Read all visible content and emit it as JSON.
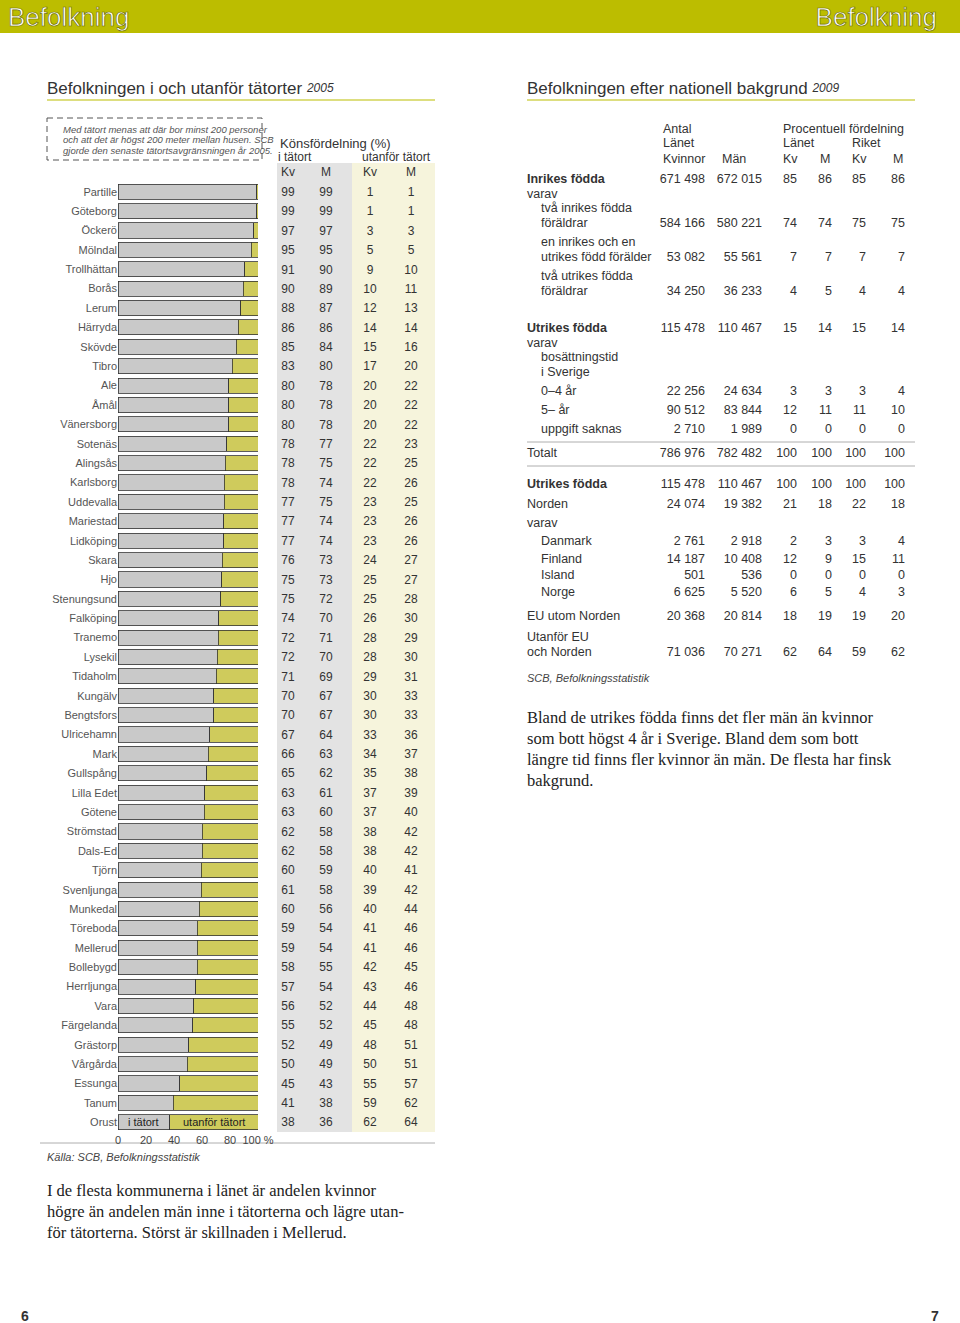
{
  "header": {
    "left": "Befolkning",
    "right": "Befolkning"
  },
  "left": {
    "title": "Befolkningen i och utanför tätorter",
    "year": "2005",
    "note": [
      "Med tätort menas att där bor minst 200 personer",
      "och att det är högst 200 meter mellan husen. SCB",
      "gjorde den senaste tätortsavgränsningen år 2005."
    ],
    "table": {
      "title": "Könsfördelning (%)",
      "groups": [
        "i tätort",
        "utanför tätort"
      ],
      "columns": [
        "Kv",
        "M",
        "Kv",
        "M"
      ],
      "rows": [
        [
          99,
          99,
          1,
          1
        ],
        [
          99,
          99,
          1,
          1
        ],
        [
          97,
          97,
          3,
          3
        ],
        [
          95,
          95,
          5,
          5
        ],
        [
          91,
          90,
          9,
          10
        ],
        [
          90,
          89,
          10,
          11
        ],
        [
          88,
          87,
          12,
          13
        ],
        [
          86,
          86,
          14,
          14
        ],
        [
          85,
          84,
          15,
          16
        ],
        [
          83,
          80,
          17,
          20
        ],
        [
          80,
          78,
          20,
          22
        ],
        [
          80,
          78,
          20,
          22
        ],
        [
          80,
          78,
          20,
          22
        ],
        [
          78,
          77,
          22,
          23
        ],
        [
          78,
          75,
          22,
          25
        ],
        [
          78,
          74,
          22,
          26
        ],
        [
          77,
          75,
          23,
          25
        ],
        [
          77,
          74,
          23,
          26
        ],
        [
          77,
          74,
          23,
          26
        ],
        [
          76,
          73,
          24,
          27
        ],
        [
          75,
          73,
          25,
          27
        ],
        [
          75,
          72,
          25,
          28
        ],
        [
          74,
          70,
          26,
          30
        ],
        [
          72,
          71,
          28,
          29
        ],
        [
          72,
          70,
          28,
          30
        ],
        [
          71,
          69,
          29,
          31
        ],
        [
          70,
          67,
          30,
          33
        ],
        [
          70,
          67,
          30,
          33
        ],
        [
          67,
          64,
          33,
          36
        ],
        [
          66,
          63,
          34,
          37
        ],
        [
          65,
          62,
          35,
          38
        ],
        [
          63,
          61,
          37,
          39
        ],
        [
          63,
          60,
          37,
          40
        ],
        [
          62,
          58,
          38,
          42
        ],
        [
          62,
          58,
          38,
          42
        ],
        [
          60,
          59,
          40,
          41
        ],
        [
          61,
          58,
          39,
          42
        ],
        [
          60,
          56,
          40,
          44
        ],
        [
          59,
          54,
          41,
          46
        ],
        [
          59,
          54,
          41,
          46
        ],
        [
          58,
          55,
          42,
          45
        ],
        [
          57,
          54,
          43,
          46
        ],
        [
          56,
          52,
          44,
          48
        ],
        [
          55,
          52,
          45,
          48
        ],
        [
          52,
          49,
          48,
          51
        ],
        [
          50,
          49,
          50,
          51
        ],
        [
          45,
          43,
          55,
          57
        ],
        [
          41,
          38,
          59,
          62
        ],
        [
          38,
          36,
          62,
          64
        ]
      ]
    },
    "source": "Källa: SCB, Befolkningsstatistik",
    "text": [
      "I de flesta kommunerna i länet är andelen kvinnor",
      "högre än andelen män inne i tätorterna och lägre utan-",
      "för tätorterna. Störst är skillnaden i Mellerud."
    ]
  },
  "chart_data": {
    "type": "bar",
    "orientation": "horizontal",
    "stacked": true,
    "grid": false,
    "categories": [
      "Partille",
      "Göteborg",
      "Öckerö",
      "Mölndal",
      "Trollhättan",
      "Borås",
      "Lerum",
      "Härryda",
      "Skövde",
      "Tibro",
      "Ale",
      "Åmål",
      "Vänersborg",
      "Sotenäs",
      "Alingsås",
      "Karlsborg",
      "Uddevalla",
      "Mariestad",
      "Lidköping",
      "Skara",
      "Hjo",
      "Stenungsund",
      "Falköping",
      "Tranemo",
      "Lysekil",
      "Tidaholm",
      "Kungälv",
      "Bengtsfors",
      "Ulricehamn",
      "Mark",
      "Gullspång",
      "Lilla Edet",
      "Götene",
      "Strömstad",
      "Dals-Ed",
      "Tjörn",
      "Svenljunga",
      "Munkedal",
      "Töreboda",
      "Mellerud",
      "Bollebygd",
      "Herrljunga",
      "Vara",
      "Färgelanda",
      "Grästorp",
      "Vårgårda",
      "Essunga",
      "Tanum",
      "Orust"
    ],
    "series": [
      {
        "name": "i tätort",
        "color": "#c9c9c9",
        "values": [
          99,
          99,
          97,
          95,
          90.5,
          89.5,
          87.5,
          86,
          84.5,
          81.5,
          79,
          79,
          79,
          77.5,
          76.5,
          76,
          76,
          75.5,
          75.5,
          74.5,
          74,
          73.5,
          72,
          71.5,
          71,
          70,
          68.5,
          68.5,
          65.5,
          64.5,
          63.5,
          62,
          61.5,
          60,
          60,
          59.5,
          59.5,
          58,
          56.5,
          56.5,
          56.5,
          55.5,
          54,
          53.5,
          50.5,
          49.5,
          44,
          39.5,
          37
        ]
      },
      {
        "name": "utanför tätort",
        "color": "#cfcb5c",
        "values": [
          1,
          1,
          3,
          5,
          9.5,
          10.5,
          12.5,
          14,
          15.5,
          18.5,
          21,
          21,
          21,
          22.5,
          23.5,
          24,
          24,
          24.5,
          24.5,
          25.5,
          26,
          26.5,
          28,
          28.5,
          29,
          30,
          31.5,
          31.5,
          34.5,
          35.5,
          36.5,
          38,
          38.5,
          40,
          40,
          40.5,
          40.5,
          42,
          43.5,
          43.5,
          43.5,
          44.5,
          46,
          46.5,
          49.5,
          50.5,
          56,
          60.5,
          63
        ]
      }
    ],
    "xlim": [
      0,
      100
    ],
    "xticks": [
      0,
      20,
      40,
      60,
      80,
      {
        "value": 100,
        "label": "100 %"
      }
    ]
  },
  "right": {
    "title": "Befolkningen efter nationell bakgrund",
    "year": "2009",
    "header": {
      "antal": [
        "Antal",
        "Länet"
      ],
      "procent": "Procentuell fördelning",
      "procent_groups": [
        "Länet",
        "Riket"
      ],
      "columns": [
        "Kvinnor",
        "Män",
        "Kv",
        "M",
        "Kv",
        "M"
      ]
    },
    "rows": [
      {
        "label": [
          "Inrikes födda"
        ],
        "values": [
          "671 498",
          "672 015",
          "85",
          "86",
          "85",
          "86"
        ]
      },
      {
        "label": [
          "varav"
        ]
      },
      {
        "label": [
          "två inrikes födda",
          "föräldrar"
        ],
        "values": [
          "584 166",
          "580 221",
          "74",
          "74",
          "75",
          "75"
        ]
      },
      {
        "label": [
          "en inrikes och en",
          "utrikes född förälder"
        ],
        "values": [
          "53 082",
          "55 561",
          "7",
          "7",
          "7",
          "7"
        ]
      },
      {
        "label": [
          "två utrikes födda",
          "föräldrar"
        ],
        "values": [
          "34 250",
          "36 233",
          "4",
          "5",
          "4",
          "4"
        ]
      },
      {
        "label": [
          "Utrikes födda"
        ],
        "values": [
          "115 478",
          "110 467",
          "15",
          "14",
          "15",
          "14"
        ]
      },
      {
        "label": [
          "varav"
        ]
      },
      {
        "label": [
          "bosättningstid",
          "i Sverige"
        ]
      },
      {
        "label": [
          "0–4 år"
        ],
        "values": [
          "22 256",
          "24 634",
          "3",
          "3",
          "3",
          "4"
        ]
      },
      {
        "label": [
          "5– år"
        ],
        "values": [
          "90 512",
          "83 844",
          "12",
          "11",
          "11",
          "10"
        ]
      },
      {
        "label": [
          "uppgift saknas"
        ],
        "values": [
          "2 710",
          "1 989",
          "0",
          "0",
          "0",
          "0"
        ]
      },
      {
        "label": [
          "Totalt"
        ],
        "values": [
          "786 976",
          "782 482",
          "100",
          "100",
          "100",
          "100"
        ]
      },
      {
        "label": [
          "Utrikes födda"
        ],
        "values": [
          "115 478",
          "110 467",
          "100",
          "100",
          "100",
          "100"
        ]
      },
      {
        "label": [
          "Norden"
        ],
        "values": [
          "24 074",
          "19 382",
          "21",
          "18",
          "22",
          "18"
        ]
      },
      {
        "label": [
          "varav"
        ]
      },
      {
        "label": [
          "Danmark"
        ],
        "values": [
          "2 761",
          "2 918",
          "2",
          "3",
          "3",
          "4"
        ]
      },
      {
        "label": [
          "Finland"
        ],
        "values": [
          "14 187",
          "10 408",
          "12",
          "9",
          "15",
          "11"
        ]
      },
      {
        "label": [
          "Island"
        ],
        "values": [
          "501",
          "536",
          "0",
          "0",
          "0",
          "0"
        ]
      },
      {
        "label": [
          "Norge"
        ],
        "values": [
          "6 625",
          "5 520",
          "6",
          "5",
          "4",
          "3"
        ]
      },
      {
        "label": [
          "EU utom Norden"
        ],
        "values": [
          "20 368",
          "20 814",
          "18",
          "19",
          "19",
          "20"
        ]
      },
      {
        "label": [
          "Utanför EU",
          "och Norden"
        ],
        "values": [
          "71 036",
          "70 271",
          "62",
          "64",
          "59",
          "62"
        ]
      }
    ],
    "source": "SCB, Befolkningsstatistik",
    "text": [
      "Bland de utrikes födda finns det fler män än kvinnor",
      "som bott högst 4 år i Sverige. Bland dem som bott",
      "längre tid finns fler kvinnor än män. De flesta har finsk",
      "bakgrund."
    ]
  },
  "page_numbers": [
    "6",
    "7"
  ]
}
